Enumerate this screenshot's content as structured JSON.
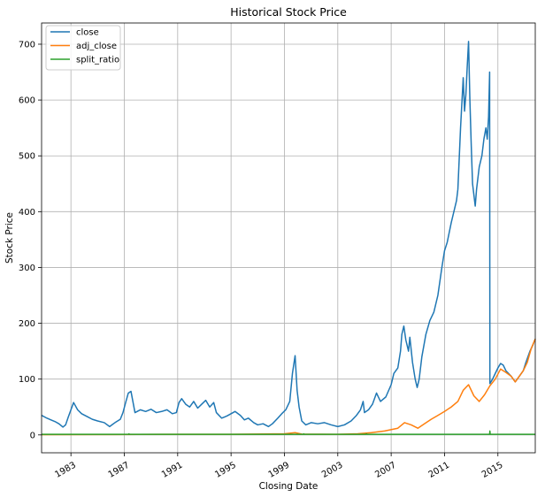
{
  "chart_data": {
    "type": "line",
    "title": "Historical Stock Price",
    "xlabel": "Closing Date",
    "ylabel": "Stock Price",
    "xlim": [
      1980.8,
      2017.8
    ],
    "ylim": [
      -32,
      738
    ],
    "grid": true,
    "legend_position": "top-left",
    "x_ticks": [
      1983,
      1987,
      1991,
      1995,
      1999,
      2003,
      2007,
      2011,
      2015
    ],
    "x_tick_labels": [
      "1983",
      "1987",
      "1991",
      "1995",
      "1999",
      "2003",
      "2007",
      "2011",
      "2015"
    ],
    "y_ticks": [
      0,
      100,
      200,
      300,
      400,
      500,
      600,
      700
    ],
    "y_tick_labels": [
      "0",
      "100",
      "200",
      "300",
      "400",
      "500",
      "600",
      "700"
    ],
    "series": [
      {
        "name": "close",
        "color": "#1f77b4",
        "points": [
          [
            1980.8,
            35
          ],
          [
            1981.2,
            30
          ],
          [
            1981.5,
            27
          ],
          [
            1981.8,
            24
          ],
          [
            1982.1,
            20
          ],
          [
            1982.4,
            14
          ],
          [
            1982.6,
            18
          ],
          [
            1982.8,
            32
          ],
          [
            1983.0,
            45
          ],
          [
            1983.2,
            58
          ],
          [
            1983.5,
            45
          ],
          [
            1983.8,
            38
          ],
          [
            1984.2,
            33
          ],
          [
            1984.6,
            28
          ],
          [
            1985.0,
            25
          ],
          [
            1985.5,
            22
          ],
          [
            1985.9,
            15
          ],
          [
            1986.3,
            22
          ],
          [
            1986.7,
            28
          ],
          [
            1986.9,
            40
          ],
          [
            1987.1,
            58
          ],
          [
            1987.3,
            75
          ],
          [
            1987.5,
            78
          ],
          [
            1987.8,
            40
          ],
          [
            1988.2,
            45
          ],
          [
            1988.6,
            42
          ],
          [
            1989.0,
            46
          ],
          [
            1989.4,
            40
          ],
          [
            1989.8,
            42
          ],
          [
            1990.2,
            45
          ],
          [
            1990.6,
            38
          ],
          [
            1990.9,
            40
          ],
          [
            1991.1,
            58
          ],
          [
            1991.3,
            65
          ],
          [
            1991.6,
            55
          ],
          [
            1991.9,
            50
          ],
          [
            1992.2,
            60
          ],
          [
            1992.5,
            48
          ],
          [
            1992.8,
            55
          ],
          [
            1993.1,
            62
          ],
          [
            1993.4,
            50
          ],
          [
            1993.7,
            58
          ],
          [
            1993.9,
            40
          ],
          [
            1994.3,
            30
          ],
          [
            1994.7,
            34
          ],
          [
            1995.0,
            38
          ],
          [
            1995.3,
            42
          ],
          [
            1995.7,
            35
          ],
          [
            1996.0,
            27
          ],
          [
            1996.3,
            30
          ],
          [
            1996.7,
            22
          ],
          [
            1997.0,
            18
          ],
          [
            1997.4,
            20
          ],
          [
            1997.8,
            15
          ],
          [
            1998.1,
            20
          ],
          [
            1998.5,
            30
          ],
          [
            1998.8,
            38
          ],
          [
            1999.1,
            45
          ],
          [
            1999.4,
            60
          ],
          [
            1999.6,
            110
          ],
          [
            1999.8,
            142
          ],
          [
            1999.95,
            80
          ],
          [
            2000.1,
            50
          ],
          [
            2000.3,
            25
          ],
          [
            2000.6,
            18
          ],
          [
            2001.0,
            22
          ],
          [
            2001.5,
            20
          ],
          [
            2002.0,
            22
          ],
          [
            2002.5,
            18
          ],
          [
            2003.0,
            15
          ],
          [
            2003.5,
            18
          ],
          [
            2004.0,
            25
          ],
          [
            2004.4,
            35
          ],
          [
            2004.7,
            45
          ],
          [
            2004.9,
            60
          ],
          [
            2005.0,
            40
          ],
          [
            2005.3,
            45
          ],
          [
            2005.6,
            55
          ],
          [
            2005.9,
            75
          ],
          [
            2006.2,
            60
          ],
          [
            2006.6,
            68
          ],
          [
            2007.0,
            90
          ],
          [
            2007.2,
            110
          ],
          [
            2007.5,
            120
          ],
          [
            2007.7,
            150
          ],
          [
            2007.8,
            180
          ],
          [
            2007.95,
            195
          ],
          [
            2008.1,
            170
          ],
          [
            2008.3,
            150
          ],
          [
            2008.4,
            175
          ],
          [
            2008.6,
            130
          ],
          [
            2008.8,
            100
          ],
          [
            2008.95,
            85
          ],
          [
            2009.1,
            100
          ],
          [
            2009.3,
            140
          ],
          [
            2009.6,
            180
          ],
          [
            2009.9,
            205
          ],
          [
            2010.2,
            220
          ],
          [
            2010.5,
            250
          ],
          [
            2010.8,
            300
          ],
          [
            2011.0,
            330
          ],
          [
            2011.2,
            345
          ],
          [
            2011.5,
            380
          ],
          [
            2011.7,
            400
          ],
          [
            2011.9,
            420
          ],
          [
            2012.0,
            440
          ],
          [
            2012.2,
            550
          ],
          [
            2012.4,
            640
          ],
          [
            2012.5,
            580
          ],
          [
            2012.6,
            610
          ],
          [
            2012.7,
            660
          ],
          [
            2012.8,
            705
          ],
          [
            2012.9,
            600
          ],
          [
            2013.0,
            520
          ],
          [
            2013.1,
            450
          ],
          [
            2013.3,
            410
          ],
          [
            2013.4,
            440
          ],
          [
            2013.6,
            480
          ],
          [
            2013.8,
            500
          ],
          [
            2013.95,
            530
          ],
          [
            2014.1,
            550
          ],
          [
            2014.2,
            530
          ],
          [
            2014.3,
            570
          ],
          [
            2014.38,
            650
          ],
          [
            2014.4,
            92
          ],
          [
            2014.6,
            100
          ],
          [
            2014.8,
            110
          ],
          [
            2015.0,
            120
          ],
          [
            2015.2,
            128
          ],
          [
            2015.4,
            125
          ],
          [
            2015.6,
            115
          ],
          [
            2015.8,
            110
          ],
          [
            2016.0,
            105
          ],
          [
            2016.3,
            95
          ],
          [
            2016.6,
            105
          ],
          [
            2016.9,
            115
          ],
          [
            2017.1,
            130
          ],
          [
            2017.4,
            150
          ],
          [
            2017.6,
            160
          ],
          [
            2017.8,
            172
          ]
        ]
      },
      {
        "name": "adj_close",
        "color": "#ff7f0e",
        "points": [
          [
            1980.8,
            0.5
          ],
          [
            1985.0,
            0.6
          ],
          [
            1990.0,
            1
          ],
          [
            1995.0,
            1
          ],
          [
            1999.0,
            2
          ],
          [
            1999.8,
            4
          ],
          [
            2000.3,
            1.5
          ],
          [
            2003.0,
            1
          ],
          [
            2004.5,
            2
          ],
          [
            2005.5,
            4
          ],
          [
            2006.5,
            7
          ],
          [
            2007.5,
            12
          ],
          [
            2008.0,
            22
          ],
          [
            2008.5,
            18
          ],
          [
            2009.0,
            12
          ],
          [
            2009.5,
            20
          ],
          [
            2010.0,
            28
          ],
          [
            2010.5,
            35
          ],
          [
            2011.0,
            42
          ],
          [
            2011.5,
            50
          ],
          [
            2012.0,
            60
          ],
          [
            2012.4,
            80
          ],
          [
            2012.8,
            90
          ],
          [
            2013.2,
            70
          ],
          [
            2013.6,
            60
          ],
          [
            2014.0,
            72
          ],
          [
            2014.4,
            88
          ],
          [
            2014.8,
            100
          ],
          [
            2015.2,
            118
          ],
          [
            2015.6,
            112
          ],
          [
            2016.0,
            105
          ],
          [
            2016.3,
            95
          ],
          [
            2016.6,
            105
          ],
          [
            2016.9,
            115
          ],
          [
            2017.2,
            130
          ],
          [
            2017.5,
            155
          ],
          [
            2017.8,
            172
          ]
        ]
      },
      {
        "name": "split_ratio",
        "color": "#2ca02c",
        "points": [
          [
            1980.8,
            1
          ],
          [
            1987.3,
            1
          ],
          [
            1987.35,
            2
          ],
          [
            1987.4,
            1
          ],
          [
            2000.4,
            1
          ],
          [
            2000.45,
            2
          ],
          [
            2000.5,
            1
          ],
          [
            2005.1,
            1
          ],
          [
            2005.15,
            2
          ],
          [
            2005.2,
            1
          ],
          [
            2014.38,
            1
          ],
          [
            2014.4,
            7
          ],
          [
            2014.42,
            1
          ],
          [
            2017.8,
            1
          ]
        ]
      }
    ]
  }
}
